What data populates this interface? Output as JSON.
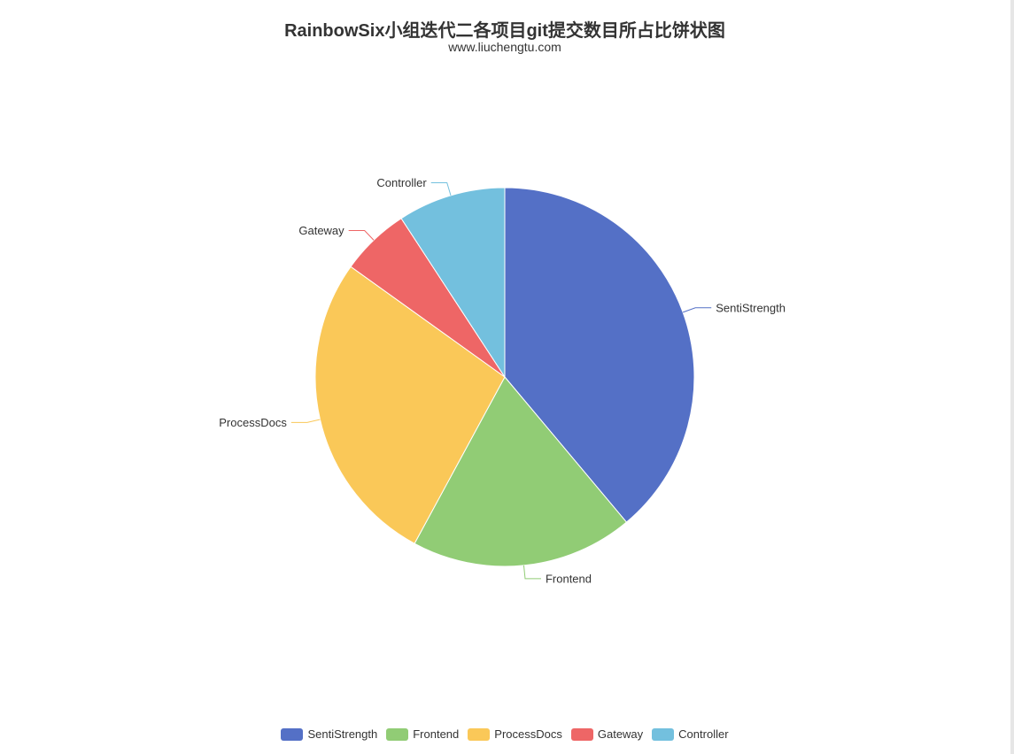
{
  "chart_data": {
    "type": "pie",
    "title": "RainbowSix小组迭代二各项目git提交数目所占比饼状图",
    "subtitle": "www.liuchengtu.com",
    "legend_position": "bottom-center",
    "slices": [
      {
        "name": "SentiStrength",
        "value": 38.9,
        "color": "#5470c6"
      },
      {
        "name": "Frontend",
        "value": 19.0,
        "color": "#91cc75"
      },
      {
        "name": "ProcessDocs",
        "value": 27.0,
        "color": "#fac858"
      },
      {
        "name": "Gateway",
        "value": 5.9,
        "color": "#ee6666"
      },
      {
        "name": "Controller",
        "value": 9.2,
        "color": "#73c0de"
      }
    ]
  }
}
